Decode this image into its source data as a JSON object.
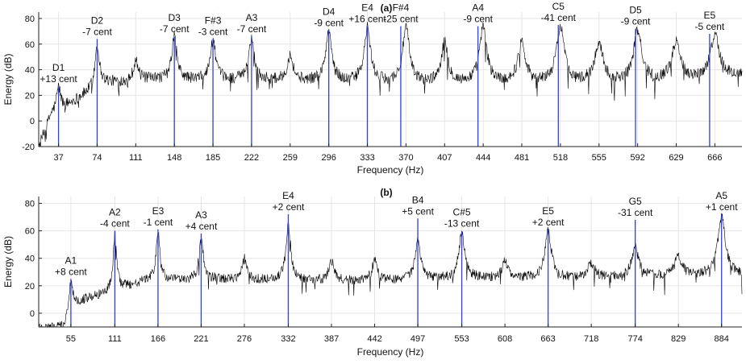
{
  "chart_data": [
    {
      "type": "line",
      "title": "(a)",
      "xlabel": "Frequency (Hz)",
      "ylabel": "Energy (dB)",
      "xlim": [
        18,
        692
      ],
      "ylim": [
        -20,
        85
      ],
      "yticks": [
        -20,
        0,
        20,
        40,
        60,
        80
      ],
      "xticks": [
        37,
        74,
        111,
        148,
        185,
        222,
        259,
        296,
        333,
        370,
        407,
        444,
        481,
        518,
        555,
        592,
        629,
        666
      ],
      "grid": true,
      "series": [
        {
          "kind": "spectrum",
          "color": "#000000",
          "base": [
            [
              18,
              -20
            ],
            [
              30,
              5
            ],
            [
              50,
              15
            ],
            [
              80,
              30
            ],
            [
              120,
              33
            ],
            [
              200,
              33
            ],
            [
              300,
              32
            ],
            [
              400,
              31
            ],
            [
              500,
              32
            ],
            [
              600,
              33
            ],
            [
              692,
              36
            ]
          ],
          "peaks": [
            {
              "f": 37,
              "h": 27
            },
            {
              "f": 74,
              "h": 60
            },
            {
              "f": 111,
              "h": 48
            },
            {
              "f": 148,
              "h": 67
            },
            {
              "f": 185,
              "h": 64
            },
            {
              "f": 222,
              "h": 65
            },
            {
              "f": 259,
              "h": 52
            },
            {
              "f": 296,
              "h": 71
            },
            {
              "f": 333,
              "h": 73
            },
            {
              "f": 370,
              "h": 74
            },
            {
              "f": 407,
              "h": 62
            },
            {
              "f": 444,
              "h": 74
            },
            {
              "f": 481,
              "h": 63
            },
            {
              "f": 518,
              "h": 75
            },
            {
              "f": 555,
              "h": 62
            },
            {
              "f": 592,
              "h": 71
            },
            {
              "f": 629,
              "h": 63
            },
            {
              "f": 666,
              "h": 68
            }
          ]
        }
      ],
      "annotations": [
        {
          "note": "D1",
          "cents": "+13 cent",
          "x": 37,
          "y": 27
        },
        {
          "note": "D2",
          "cents": "-7 cent",
          "x": 74,
          "y": 64
        },
        {
          "note": "D3",
          "cents": "-7 cent",
          "x": 148,
          "y": 66
        },
        {
          "note": "F#3",
          "cents": "-3 cent",
          "x": 185,
          "y": 64
        },
        {
          "note": "A3",
          "cents": "-7 cent",
          "x": 222,
          "y": 66
        },
        {
          "note": "D4",
          "cents": "-9 cent",
          "x": 296,
          "y": 71
        },
        {
          "note": "E4",
          "cents": "+16 cent",
          "x": 333,
          "y": 74
        },
        {
          "note": "F#4",
          "cents": "-25 cent",
          "x": 365,
          "y": 74
        },
        {
          "note": "A4",
          "cents": "-9 cent",
          "x": 439,
          "y": 74
        },
        {
          "note": "C5",
          "cents": "-41 cent",
          "x": 516,
          "y": 75
        },
        {
          "note": "D5",
          "cents": "-9 cent",
          "x": 590,
          "y": 72
        },
        {
          "note": "E5",
          "cents": "-5 cent",
          "x": 661,
          "y": 68
        }
      ]
    },
    {
      "type": "line",
      "title": "(b)",
      "xlabel": "Frequency (Hz)",
      "ylabel": "Energy (dB)",
      "xlim": [
        14,
        910
      ],
      "ylim": [
        -10,
        85
      ],
      "yticks": [
        0,
        20,
        40,
        60,
        80
      ],
      "xticks": [
        55,
        111,
        166,
        221,
        276,
        332,
        387,
        442,
        497,
        553,
        608,
        663,
        718,
        774,
        829,
        884
      ],
      "grid": true,
      "series": [
        {
          "kind": "spectrum",
          "color": "#000000",
          "base": [
            [
              14,
              -10
            ],
            [
              45,
              -10
            ],
            [
              60,
              8
            ],
            [
              100,
              15
            ],
            [
              150,
              24
            ],
            [
              250,
              25
            ],
            [
              400,
              24
            ],
            [
              550,
              26
            ],
            [
              700,
              26
            ],
            [
              850,
              28
            ],
            [
              910,
              28
            ]
          ],
          "peaks": [
            {
              "f": 55,
              "h": 24
            },
            {
              "f": 111,
              "h": 58
            },
            {
              "f": 166,
              "h": 60
            },
            {
              "f": 221,
              "h": 56
            },
            {
              "f": 276,
              "h": 40
            },
            {
              "f": 332,
              "h": 66
            },
            {
              "f": 387,
              "h": 38
            },
            {
              "f": 442,
              "h": 38
            },
            {
              "f": 497,
              "h": 52
            },
            {
              "f": 553,
              "h": 58
            },
            {
              "f": 608,
              "h": 38
            },
            {
              "f": 663,
              "h": 60
            },
            {
              "f": 718,
              "h": 37
            },
            {
              "f": 774,
              "h": 48
            },
            {
              "f": 829,
              "h": 42
            },
            {
              "f": 884,
              "h": 70
            }
          ]
        }
      ],
      "annotations": [
        {
          "note": "A1",
          "cents": "+8 cent",
          "x": 55,
          "y": 25
        },
        {
          "note": "A2",
          "cents": "-4 cent",
          "x": 111,
          "y": 60
        },
        {
          "note": "E3",
          "cents": "-1 cent",
          "x": 166,
          "y": 61
        },
        {
          "note": "A3",
          "cents": "+4 cent",
          "x": 221,
          "y": 58
        },
        {
          "note": "E4",
          "cents": "+2 cent",
          "x": 332,
          "y": 72
        },
        {
          "note": "B4",
          "cents": "+5 cent",
          "x": 497,
          "y": 69
        },
        {
          "note": "C#5",
          "cents": "-13 cent",
          "x": 553,
          "y": 60
        },
        {
          "note": "E5",
          "cents": "+2 cent",
          "x": 663,
          "y": 61
        },
        {
          "note": "G5",
          "cents": "-31 cent",
          "x": 774,
          "y": 68
        },
        {
          "note": "A5",
          "cents": "+1 cent",
          "x": 884,
          "y": 72
        }
      ]
    }
  ]
}
